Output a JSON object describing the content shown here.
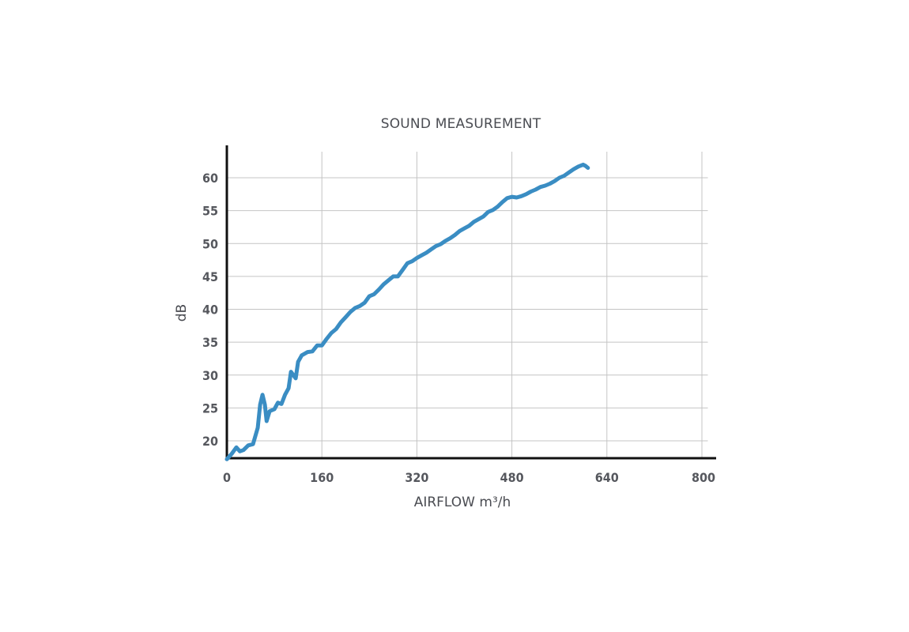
{
  "colors": {
    "series": "#3a8dc3",
    "axis": "#111111",
    "grid": "#c4c4c4",
    "text": "#4a4c52"
  },
  "chart_data": {
    "type": "line",
    "title": "SOUND MEASUREMENT",
    "xlabel": "AIRFLOW m³/h",
    "ylabel": "dB",
    "xlim": [
      0,
      810
    ],
    "ylim": [
      17.2,
      64
    ],
    "grid": true,
    "x_ticks": [
      0,
      160,
      320,
      480,
      640,
      800
    ],
    "y_ticks": [
      20,
      25,
      30,
      35,
      40,
      45,
      50,
      55,
      60
    ],
    "x_tick_labels": [
      "0",
      "160",
      "320",
      "480",
      "640",
      "800"
    ],
    "y_tick_labels": [
      "20",
      "25",
      "30",
      "35",
      "40",
      "45",
      "50",
      "55",
      "60"
    ],
    "series": [
      {
        "points": [
          [
            0,
            17.2
          ],
          [
            8,
            18.0
          ],
          [
            16,
            19.0
          ],
          [
            22,
            18.4
          ],
          [
            28,
            18.6
          ],
          [
            36,
            19.3
          ],
          [
            44,
            19.5
          ],
          [
            52,
            22.0
          ],
          [
            56,
            25.5
          ],
          [
            60,
            27.0
          ],
          [
            64,
            25.5
          ],
          [
            67,
            23.0
          ],
          [
            72,
            24.5
          ],
          [
            80,
            24.8
          ],
          [
            86,
            25.8
          ],
          [
            92,
            25.6
          ],
          [
            98,
            27.0
          ],
          [
            104,
            28.0
          ],
          [
            108,
            30.5
          ],
          [
            112,
            30.0
          ],
          [
            116,
            29.5
          ],
          [
            120,
            32.0
          ],
          [
            126,
            33.0
          ],
          [
            136,
            33.5
          ],
          [
            144,
            33.6
          ],
          [
            152,
            34.5
          ],
          [
            160,
            34.5
          ],
          [
            168,
            35.5
          ],
          [
            176,
            36.4
          ],
          [
            184,
            37.0
          ],
          [
            192,
            38.0
          ],
          [
            200,
            38.8
          ],
          [
            208,
            39.6
          ],
          [
            216,
            40.2
          ],
          [
            224,
            40.5
          ],
          [
            232,
            41.0
          ],
          [
            240,
            42.0
          ],
          [
            248,
            42.3
          ],
          [
            256,
            43.0
          ],
          [
            264,
            43.8
          ],
          [
            272,
            44.4
          ],
          [
            280,
            45.0
          ],
          [
            288,
            45.0
          ],
          [
            296,
            46.0
          ],
          [
            304,
            47.0
          ],
          [
            312,
            47.3
          ],
          [
            320,
            47.8
          ],
          [
            328,
            48.2
          ],
          [
            336,
            48.6
          ],
          [
            344,
            49.1
          ],
          [
            352,
            49.6
          ],
          [
            360,
            49.9
          ],
          [
            368,
            50.4
          ],
          [
            376,
            50.8
          ],
          [
            384,
            51.3
          ],
          [
            392,
            51.9
          ],
          [
            400,
            52.3
          ],
          [
            408,
            52.7
          ],
          [
            416,
            53.3
          ],
          [
            424,
            53.7
          ],
          [
            432,
            54.1
          ],
          [
            440,
            54.8
          ],
          [
            448,
            55.1
          ],
          [
            456,
            55.6
          ],
          [
            464,
            56.3
          ],
          [
            472,
            56.9
          ],
          [
            480,
            57.1
          ],
          [
            488,
            57.0
          ],
          [
            496,
            57.2
          ],
          [
            504,
            57.5
          ],
          [
            512,
            57.9
          ],
          [
            520,
            58.2
          ],
          [
            528,
            58.6
          ],
          [
            536,
            58.8
          ],
          [
            544,
            59.1
          ],
          [
            552,
            59.5
          ],
          [
            560,
            60.0
          ],
          [
            568,
            60.3
          ],
          [
            576,
            60.8
          ],
          [
            584,
            61.3
          ],
          [
            592,
            61.7
          ],
          [
            600,
            62.0
          ],
          [
            604,
            61.8
          ],
          [
            608,
            61.5
          ]
        ]
      }
    ]
  }
}
